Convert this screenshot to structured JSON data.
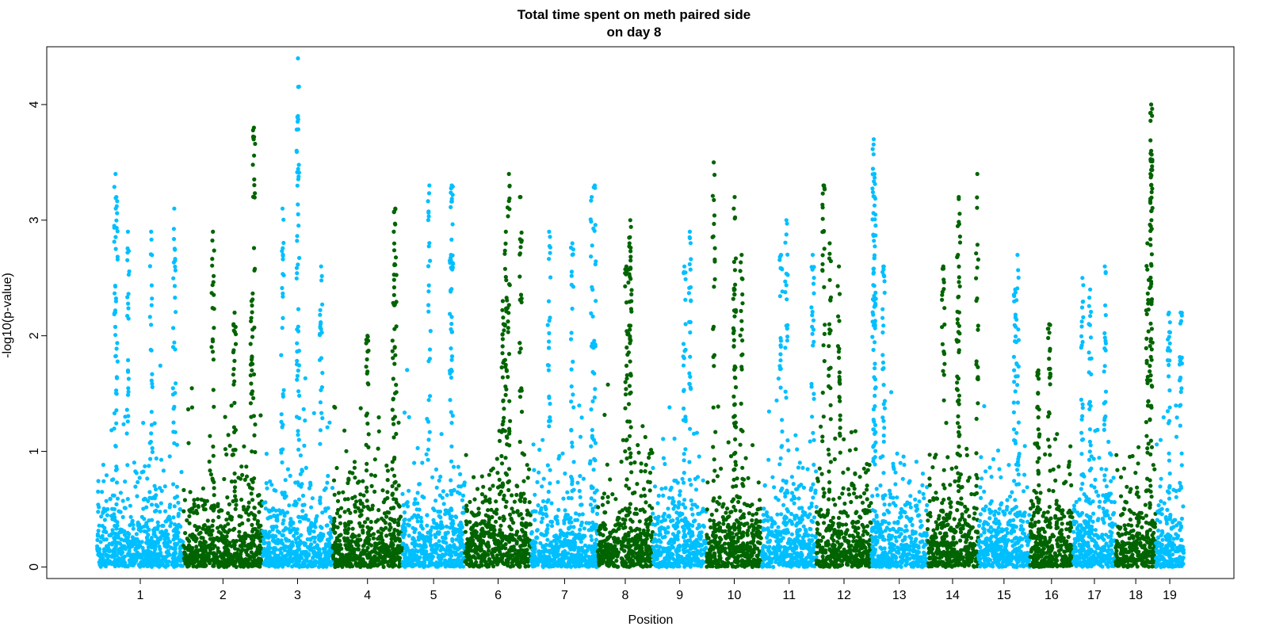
{
  "chart_data": {
    "type": "scatter",
    "title": "Total time spent on meth paired side",
    "subtitle": "on day 8",
    "xlabel": "Position",
    "ylabel": "-log10(p-value)",
    "ylim": [
      -0.1,
      4.5
    ],
    "yticks": [
      0,
      1,
      2,
      3,
      4
    ],
    "grid": false,
    "legend": "none",
    "series_colors": [
      "#00BFFF",
      "#006400"
    ],
    "chromosomes": [
      {
        "label": "1",
        "start": 0.0,
        "end": 11.2,
        "peaks": [
          [
            2.4,
            3.4
          ],
          [
            2.5,
            3.2
          ],
          [
            7.0,
            2.9
          ],
          [
            10.0,
            3.1
          ],
          [
            4.0,
            2.9
          ]
        ]
      },
      {
        "label": "2",
        "start": 11.2,
        "end": 21.4,
        "peaks": [
          [
            15.0,
            2.9
          ],
          [
            17.8,
            2.2
          ],
          [
            20.3,
            3.8
          ],
          [
            20.0,
            2.3
          ]
        ]
      },
      {
        "label": "3",
        "start": 21.4,
        "end": 30.5,
        "peaks": [
          [
            26.0,
            4.4
          ],
          [
            26.0,
            3.9
          ],
          [
            24.0,
            3.1
          ],
          [
            29.0,
            2.6
          ]
        ]
      },
      {
        "label": "4",
        "start": 30.5,
        "end": 39.5,
        "peaks": [
          [
            38.6,
            3.1
          ],
          [
            38.4,
            2.9
          ],
          [
            35.0,
            2.0
          ]
        ]
      },
      {
        "label": "5",
        "start": 39.5,
        "end": 47.6,
        "peaks": [
          [
            43.0,
            3.3
          ],
          [
            45.9,
            3.3
          ],
          [
            45.8,
            2.7
          ]
        ]
      },
      {
        "label": "6",
        "start": 47.6,
        "end": 56.2,
        "peaks": [
          [
            53.3,
            3.4
          ],
          [
            54.8,
            3.2
          ],
          [
            52.9,
            2.9
          ],
          [
            52.5,
            2.3
          ]
        ]
      },
      {
        "label": "7",
        "start": 56.2,
        "end": 64.8,
        "peaks": [
          [
            58.5,
            2.9
          ],
          [
            61.5,
            2.8
          ],
          [
            64.0,
            3.2
          ],
          [
            64.4,
            3.3
          ]
        ]
      },
      {
        "label": "8",
        "start": 64.8,
        "end": 71.9,
        "peaks": [
          [
            69.0,
            3.0
          ],
          [
            68.9,
            2.8
          ],
          [
            68.5,
            2.6
          ]
        ]
      },
      {
        "label": "9",
        "start": 71.9,
        "end": 78.9,
        "peaks": [
          [
            76.7,
            2.9
          ],
          [
            76.0,
            2.6
          ]
        ]
      },
      {
        "label": "10",
        "start": 78.9,
        "end": 86.0,
        "peaks": [
          [
            79.8,
            3.5
          ],
          [
            82.5,
            3.2
          ],
          [
            83.4,
            2.7
          ],
          [
            82.5,
            2.4
          ]
        ]
      },
      {
        "label": "11",
        "start": 86.0,
        "end": 93.1,
        "peaks": [
          [
            89.2,
            3.0
          ],
          [
            88.5,
            2.7
          ],
          [
            92.6,
            2.7
          ]
        ]
      },
      {
        "label": "12",
        "start": 93.1,
        "end": 100.2,
        "peaks": [
          [
            94.0,
            3.3
          ],
          [
            94.8,
            2.8
          ],
          [
            96.0,
            2.6
          ]
        ]
      },
      {
        "label": "13",
        "start": 100.2,
        "end": 107.4,
        "peaks": [
          [
            100.5,
            3.7
          ],
          [
            100.6,
            3.4
          ],
          [
            100.6,
            3.2
          ],
          [
            101.8,
            2.6
          ]
        ]
      },
      {
        "label": "14",
        "start": 107.4,
        "end": 114.0,
        "peaks": [
          [
            111.5,
            3.2
          ],
          [
            111.4,
            2.7
          ],
          [
            109.5,
            2.6
          ],
          [
            113.9,
            3.4
          ]
        ]
      },
      {
        "label": "15",
        "start": 114.0,
        "end": 120.7,
        "peaks": [
          [
            119.1,
            2.7
          ],
          [
            118.8,
            2.4
          ]
        ]
      },
      {
        "label": "16",
        "start": 120.7,
        "end": 126.3,
        "peaks": [
          [
            123.2,
            2.1
          ],
          [
            121.8,
            1.7
          ]
        ]
      },
      {
        "label": "17",
        "start": 126.3,
        "end": 131.8,
        "peaks": [
          [
            127.5,
            2.5
          ],
          [
            130.4,
            2.6
          ],
          [
            128.5,
            2.4
          ]
        ]
      },
      {
        "label": "18",
        "start": 131.8,
        "end": 137.0,
        "peaks": [
          [
            136.4,
            4.0
          ],
          [
            136.4,
            3.6
          ],
          [
            136.3,
            3.4
          ],
          [
            135.9,
            2.8
          ]
        ]
      },
      {
        "label": "19",
        "start": 137.0,
        "end": 140.6,
        "peaks": [
          [
            138.7,
            2.2
          ],
          [
            140.2,
            2.2
          ]
        ]
      }
    ]
  }
}
